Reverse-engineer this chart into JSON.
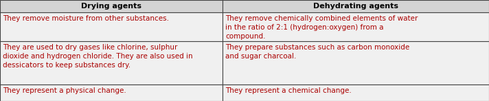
{
  "headers": [
    "Drying agents",
    "Dehydrating agents"
  ],
  "rows": [
    [
      "They remove moisture from other substances.",
      "They remove chemically combined elements of water\nin the ratio of 2:1 (hydrogen:oxygen) from a\ncompound."
    ],
    [
      "They are used to dry gases like chlorine, sulphur\ndioxide and hydrogen chloride. They are also used in\ndessicators to keep substances dry.",
      "They prepare substances such as carbon monoxide\nand sugar charcoal."
    ],
    [
      "They represent a physical change.",
      "They represent a chemical change."
    ]
  ],
  "header_bg": "#d4d4d4",
  "row_bg": "#f0f0f0",
  "border_color": "#444444",
  "header_text_color": "#000000",
  "cell_text_color": "#aa0000",
  "header_font_size": 8.0,
  "cell_font_size": 7.5,
  "col_splits": [
    0.0,
    0.455,
    1.0
  ],
  "fig_width": 7.12,
  "fig_height": 1.47,
  "dpi": 100
}
